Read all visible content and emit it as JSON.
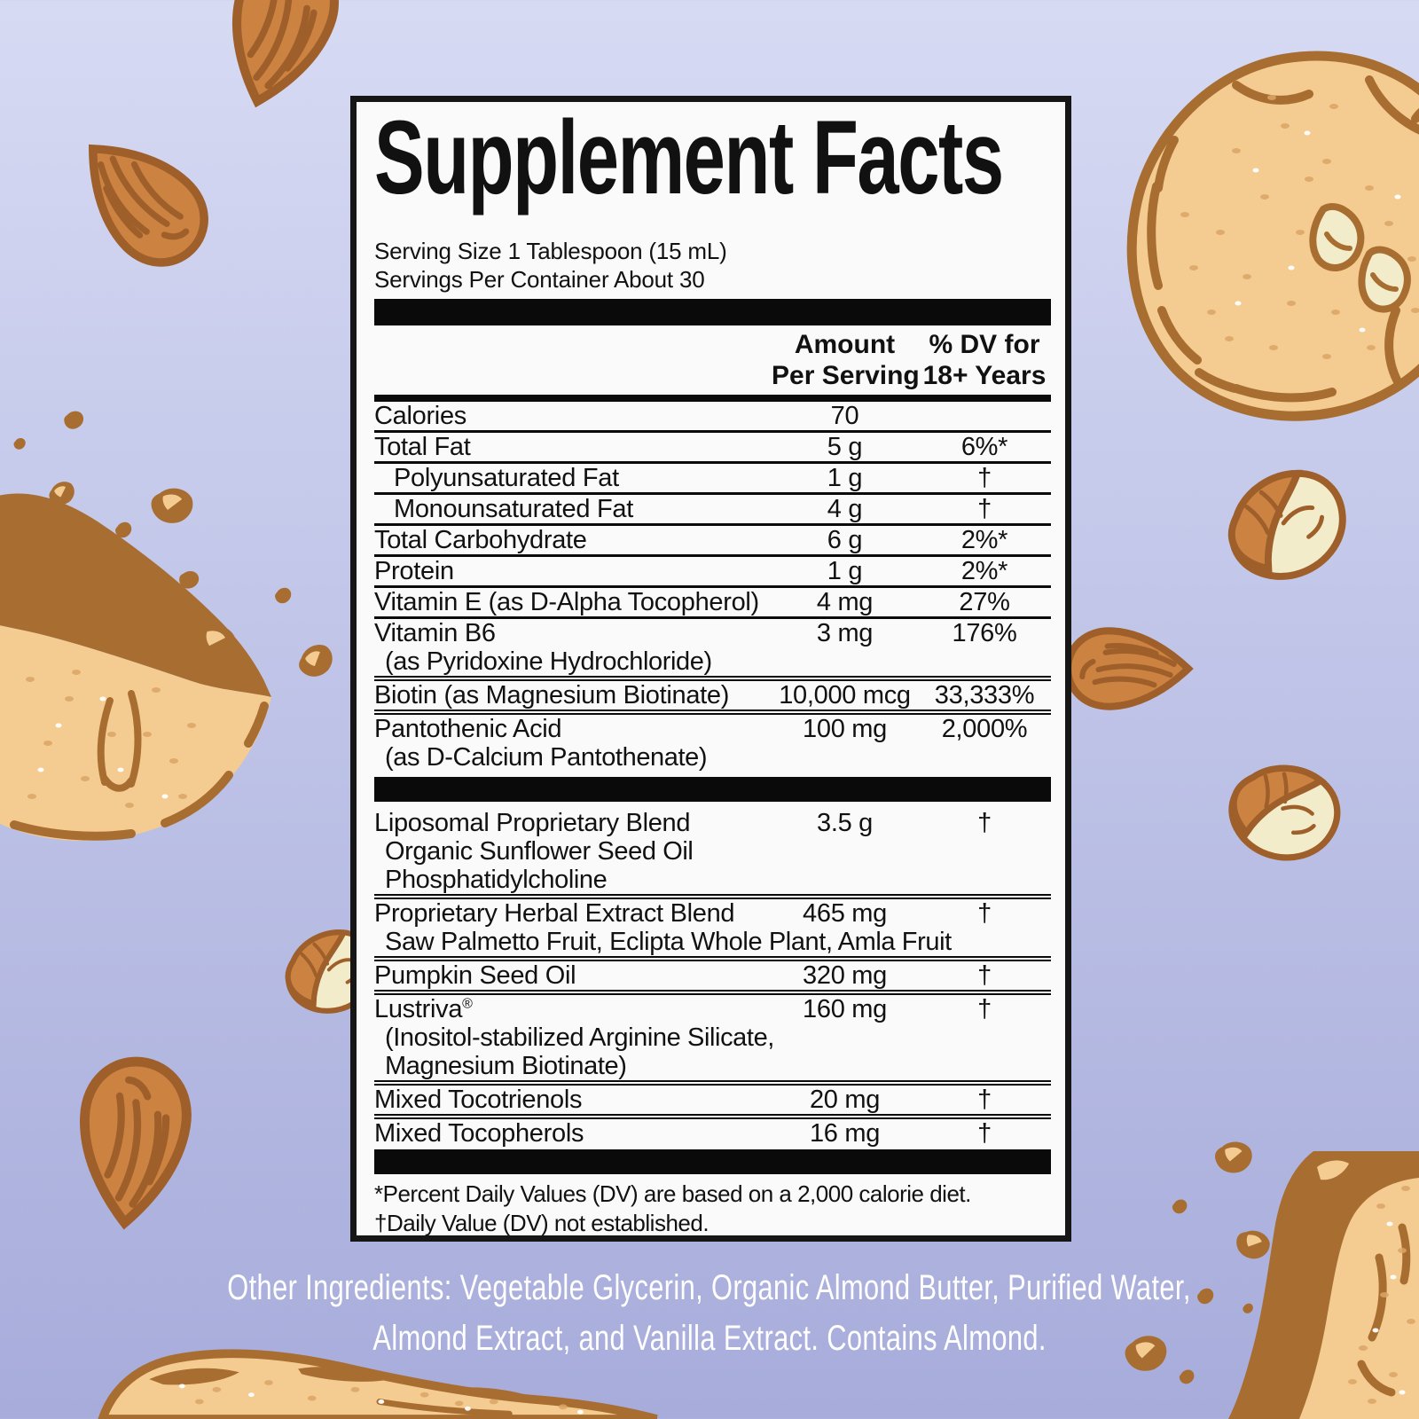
{
  "label": {
    "title": "Supplement Facts",
    "serving_size": "Serving Size 1 Tablespoon (15 mL)",
    "servings_per_container": "Servings Per Container About 30",
    "columns": {
      "amount_line1": "Amount",
      "amount_line2": "Per Serving",
      "dv_line1": "% DV for",
      "dv_line2": "18+ Years"
    },
    "nutrients": [
      {
        "label": "Calories",
        "amount": "70",
        "dv": "",
        "sep": "s"
      },
      {
        "label": "Total Fat",
        "amount": "5 g",
        "dv": "6%*",
        "sep": "s"
      },
      {
        "label": "Polyunsaturated Fat",
        "amount": "1 g",
        "dv": "†",
        "indent": true,
        "sep": "s"
      },
      {
        "label": "Monounsaturated Fat",
        "amount": "4 g",
        "dv": "†",
        "indent": true,
        "sep": "s"
      },
      {
        "label": "Total Carbohydrate",
        "amount": "6 g",
        "dv": "2%*",
        "sep": "s"
      },
      {
        "label": "Protein",
        "amount": "1 g",
        "dv": "2%*",
        "sep": "s"
      },
      {
        "label": "Vitamin E (as D-Alpha Tocopherol)",
        "amount": "4 mg",
        "dv": "27%",
        "sep": "s"
      },
      {
        "label": "Vitamin B6",
        "amount": "3 mg",
        "dv": "176%",
        "sub": [
          "(as Pyridoxine Hydrochloride)"
        ],
        "sep": "d"
      },
      {
        "label": "Biotin (as Magnesium Biotinate)",
        "amount": "10,000 mcg",
        "dv": "33,333%",
        "sep": "d"
      },
      {
        "label": "Pantothenic Acid",
        "amount": "100 mg",
        "dv": "2,000%",
        "sub": [
          "(as D-Calcium Pantothenate)"
        ],
        "sep": "n"
      }
    ],
    "blend_rows": [
      {
        "label": "Liposomal Proprietary Blend",
        "amount": "3.5 g",
        "dv": "†",
        "sub": [
          "Organic Sunflower Seed Oil",
          "Phosphatidylcholine"
        ],
        "sep": "d"
      },
      {
        "label": "Proprietary Herbal Extract Blend",
        "amount": "465 mg",
        "dv": "†",
        "sub": [
          "Saw Palmetto Fruit, Eclipta Whole Plant, Amla Fruit"
        ],
        "sep": "d"
      },
      {
        "label": "Pumpkin Seed Oil",
        "amount": "320 mg",
        "dv": "†",
        "sep": "d"
      },
      {
        "label": "Lustriva®",
        "amount": "160 mg",
        "dv": "†",
        "sub": [
          "(Inositol-stabilized Arginine Silicate,",
          "Magnesium Biotinate)"
        ],
        "sep": "d"
      },
      {
        "label": "Mixed Tocotrienols",
        "amount": "20 mg",
        "dv": "†",
        "sep": "d"
      },
      {
        "label": "Mixed Tocopherols",
        "amount": "16 mg",
        "dv": "†",
        "sep": "n"
      }
    ],
    "footnotes": [
      "*Percent Daily Values (DV) are based on a 2,000 calorie diet.",
      "†Daily Value (DV) not established."
    ]
  },
  "other_ingredients": [
    "Other Ingredients: Vegetable Glycerin, Organic Almond Butter, Purified Water,",
    "Almond Extract, and Vanilla Extract. Contains Almond."
  ],
  "illustrations": [
    "whole-almond",
    "cracked-almond",
    "almond-cookie",
    "broken-cookie-piece",
    "cookie-crumbs"
  ],
  "colors": {
    "background_top": "#d6daf3",
    "background_bottom": "#a7acdb",
    "panel_bg": "#fafafa",
    "panel_border": "#161616",
    "rule_color": "#0a0a0a",
    "text_color": "#111111",
    "almond_fill": "#cc8240",
    "almond_outline": "#9e5f2a",
    "cookie_fill": "#f4cc92",
    "cookie_outline": "#a86d31",
    "kernel_fill": "#f3ecca",
    "speckle_color": "#dba666",
    "speckle_white": "#ffffff",
    "other_ingredients_color": "#ffffff"
  }
}
